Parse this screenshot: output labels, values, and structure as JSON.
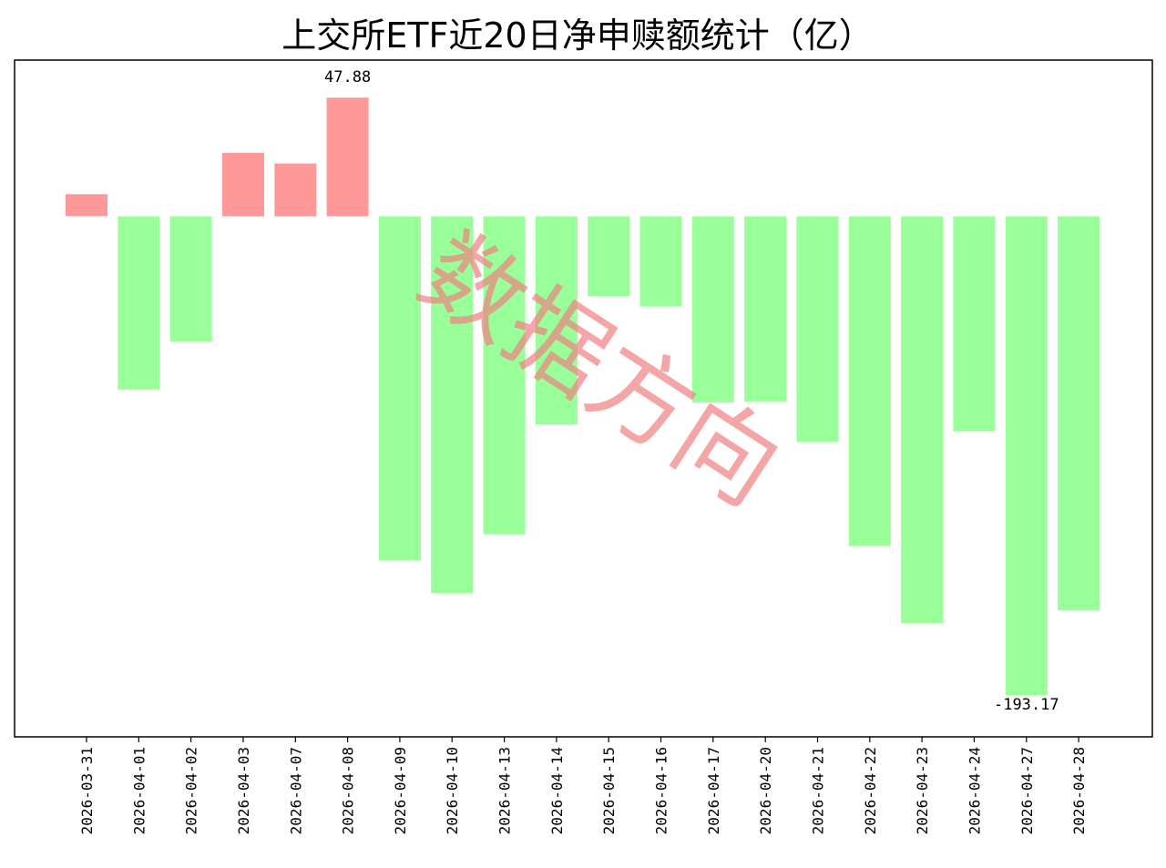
{
  "chart_data": {
    "type": "bar",
    "title": "上交所ETF近20日净申赎额统计（亿）",
    "xlabel": "",
    "ylabel": "",
    "categories": [
      "2026-03-31",
      "2026-04-01",
      "2026-04-02",
      "2026-04-03",
      "2026-04-07",
      "2026-04-08",
      "2026-04-09",
      "2026-04-10",
      "2026-04-13",
      "2026-04-14",
      "2026-04-15",
      "2026-04-16",
      "2026-04-17",
      "2026-04-20",
      "2026-04-21",
      "2026-04-22",
      "2026-04-23",
      "2026-04-24",
      "2026-04-27",
      "2026-04-28"
    ],
    "values": [
      8.9,
      -69.9,
      -50.5,
      25.6,
      21.3,
      47.88,
      -138.9,
      -152.0,
      -128.3,
      -84.0,
      -32.3,
      -36.4,
      -75.1,
      -74.7,
      -91.0,
      -133.0,
      -164.2,
      -86.7,
      -193.17,
      -159.0
    ],
    "data_labels": [
      {
        "category": "2026-04-08",
        "text": "47.88"
      },
      {
        "category": "2026-04-27",
        "text": "-193.17"
      }
    ],
    "ylim": [
      -210,
      63
    ],
    "grid": false,
    "legend": "none",
    "colors": {
      "positive": "#ff9999",
      "negative": "#99ff99",
      "axis": "#000000"
    }
  },
  "watermark": {
    "text": "数据方向",
    "color": "#f08080"
  }
}
